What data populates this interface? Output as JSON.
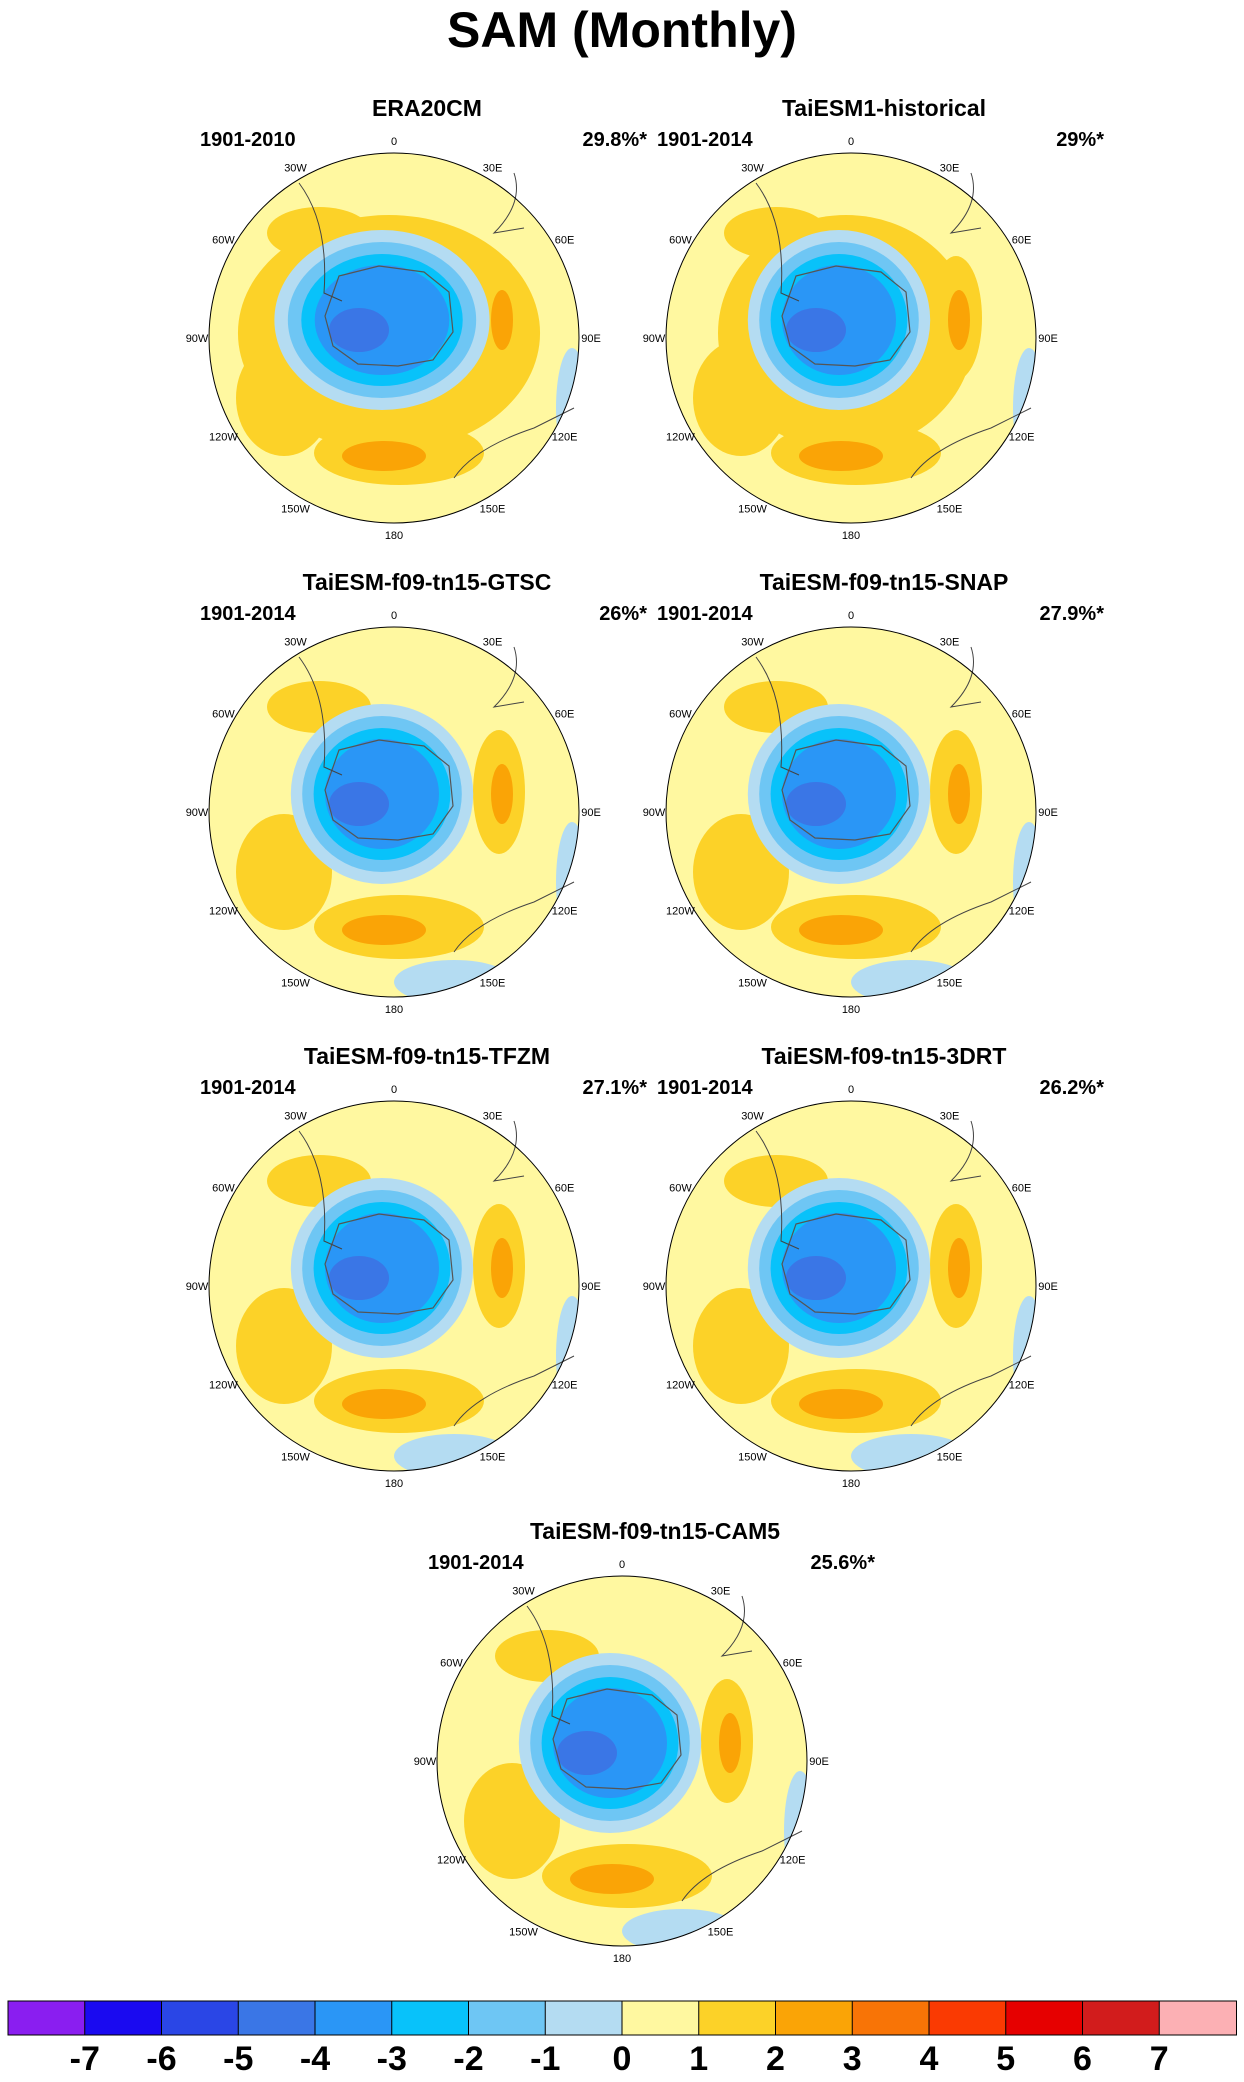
{
  "title": "SAM (Monthly)",
  "panels": [
    {
      "title": "ERA20CM",
      "period": "1901-2010",
      "percent": "29.8%*"
    },
    {
      "title": "TaiESM1-historical",
      "period": "1901-2014",
      "percent": "29%*"
    },
    {
      "title": "TaiESM-f09-tn15-GTSC",
      "period": "1901-2014",
      "percent": "26%*"
    },
    {
      "title": "TaiESM-f09-tn15-SNAP",
      "period": "1901-2014",
      "percent": "27.9%*"
    },
    {
      "title": "TaiESM-f09-tn15-TFZM",
      "period": "1901-2014",
      "percent": "27.1%*"
    },
    {
      "title": "TaiESM-f09-tn15-3DRT",
      "period": "1901-2014",
      "percent": "26.2%*"
    },
    {
      "title": "TaiESM-f09-tn15-CAM5",
      "period": "1901-2014",
      "percent": "25.6%*"
    }
  ],
  "longitude_labels": [
    "0",
    "30E",
    "60E",
    "90E",
    "120E",
    "150E",
    "180",
    "150W",
    "120W",
    "90W",
    "60W",
    "30W"
  ],
  "colorbar": {
    "labels": [
      "-7",
      "-6",
      "-5",
      "-4",
      "-3",
      "-2",
      "-1",
      "0",
      "1",
      "2",
      "3",
      "4",
      "5",
      "6",
      "7"
    ],
    "colors": [
      "#8a1ef0",
      "#1a0af0",
      "#2a46e6",
      "#3a76e6",
      "#2a96f6",
      "#08c2fa",
      "#6ec6f4",
      "#b4dcf2",
      "#fff8a0",
      "#fcd228",
      "#faa406",
      "#f87406",
      "#fa3a02",
      "#e60000",
      "#d21c1c",
      "#fcb0b4"
    ]
  }
}
